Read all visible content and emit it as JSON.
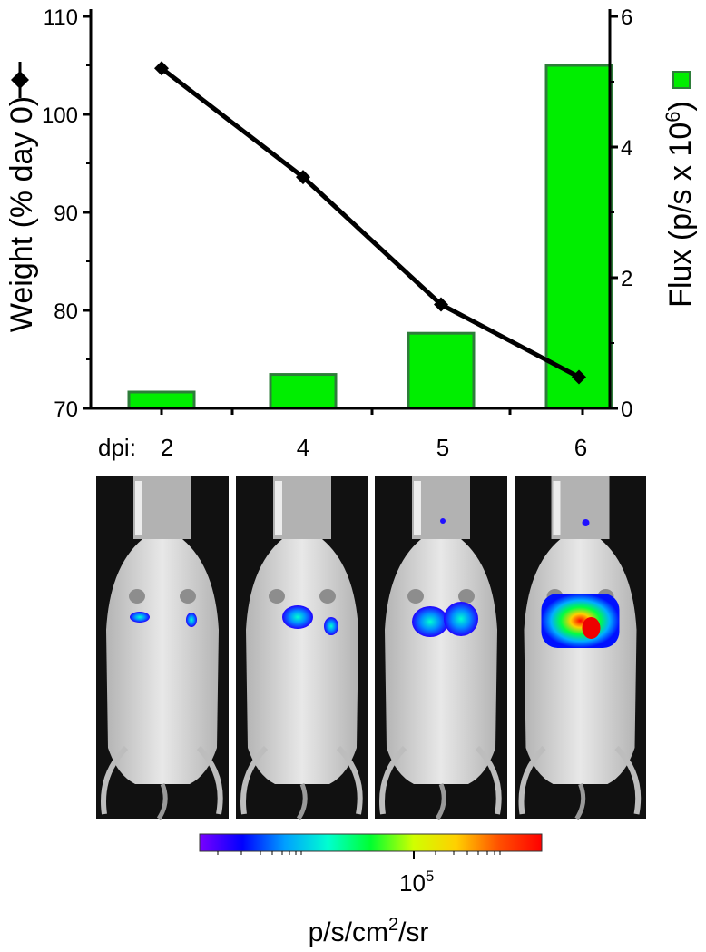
{
  "chart_data": {
    "type": "bar+line",
    "x_prefix": "dpi:",
    "categories": [
      "2",
      "4",
      "5",
      "6"
    ],
    "series": [
      {
        "name": "Weight (% day 0)",
        "type": "line",
        "axis": "left",
        "marker": "diamond",
        "color": "#000000",
        "values": [
          104.7,
          93.6,
          80.6,
          73.2
        ]
      },
      {
        "name": "Flux (p/s x 10^6)",
        "type": "bar",
        "axis": "right",
        "color": "#00ee00",
        "edge_color": "#2e7d3a",
        "values": [
          0.25,
          0.52,
          1.15,
          5.25
        ]
      }
    ],
    "left_axis": {
      "label_main": "Weight (% day 0)",
      "ylim": [
        70,
        110
      ],
      "ticks": [
        70,
        80,
        90,
        100,
        110
      ]
    },
    "right_axis": {
      "label_main": "Flux  (p/s x 10",
      "label_sup": "6",
      "label_end": ")",
      "ylim": [
        0,
        6
      ],
      "ticks": [
        0,
        2,
        4,
        6
      ]
    },
    "images": {
      "description_labels": [
        "dpi 2",
        "dpi 4",
        "dpi 5",
        "dpi 6"
      ],
      "signal_intensity": [
        0.25,
        0.45,
        0.65,
        1.0
      ]
    },
    "colorbar": {
      "tick_label": "10",
      "tick_sup": "5",
      "unit_parts": [
        "p/s/cm",
        "2",
        "/sr"
      ],
      "colors": [
        "#7a00ff",
        "#0000ff",
        "#00a0ff",
        "#00ffd0",
        "#00ff30",
        "#d0ff00",
        "#ffd000",
        "#ff5000",
        "#ff0000"
      ]
    }
  }
}
